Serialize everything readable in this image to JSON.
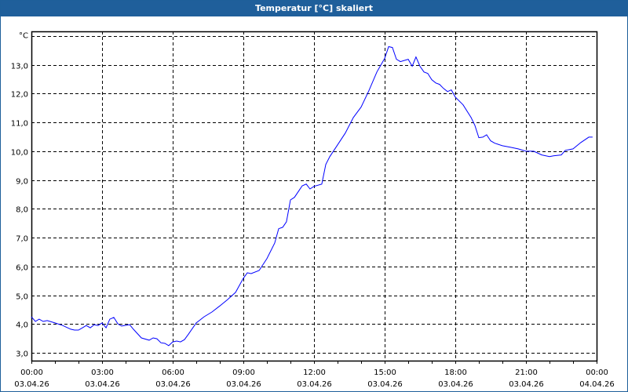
{
  "window": {
    "title": "Temperatur [°C] skaliert"
  },
  "chart_data": {
    "type": "line",
    "title": "Temperatur [°C] skaliert",
    "ylabel": "°C",
    "xlabel": "",
    "xlim": [
      0,
      24
    ],
    "ylim": [
      2.73,
      14.16
    ],
    "grid": true,
    "y_ticks": [
      "3,0",
      "4,0",
      "5,0",
      "6,0",
      "7,0",
      "8,0",
      "9,0",
      "10,0",
      "11,0",
      "12,0",
      "13,0"
    ],
    "x_ticks": [
      {
        "time": "00:00",
        "date": "03.04.26"
      },
      {
        "time": "03:00",
        "date": "03.04.26"
      },
      {
        "time": "06:00",
        "date": "03.04.26"
      },
      {
        "time": "09:00",
        "date": "03.04.26"
      },
      {
        "time": "12:00",
        "date": "03.04.26"
      },
      {
        "time": "15:00",
        "date": "03.04.26"
      },
      {
        "time": "18:00",
        "date": "03.04.26"
      },
      {
        "time": "21:00",
        "date": "03.04.26"
      },
      {
        "time": "00:00",
        "date": "04.04.26"
      }
    ],
    "series": [
      {
        "name": "Temperatur",
        "color": "#0000ff",
        "x": [
          0,
          0.17,
          0.33,
          0.5,
          0.67,
          1,
          1.33,
          1.67,
          1.83,
          2,
          2.17,
          2.33,
          2.5,
          2.67,
          2.83,
          3,
          3.17,
          3.33,
          3.5,
          3.67,
          3.83,
          4.17,
          4.33,
          4.67,
          5,
          5.17,
          5.33,
          5.5,
          5.67,
          5.83,
          6,
          6.17,
          6.33,
          6.5,
          6.67,
          7,
          7.33,
          7.67,
          8,
          8.33,
          8.67,
          9,
          9.17,
          9.33,
          9.67,
          10,
          10.33,
          10.5,
          10.67,
          10.83,
          11,
          11.17,
          11.5,
          11.67,
          11.83,
          12,
          12.33,
          12.5,
          12.67,
          13,
          13.33,
          13.67,
          14,
          14.33,
          14.67,
          15,
          15.17,
          15.33,
          15.5,
          15.67,
          16,
          16.17,
          16.33,
          16.5,
          16.67,
          16.83,
          17,
          17.17,
          17.33,
          17.5,
          17.67,
          17.83,
          18,
          18.33,
          18.67,
          18.83,
          19,
          19.17,
          19.33,
          19.5,
          19.67,
          20,
          20.33,
          20.67,
          21,
          21.33,
          21.67,
          22,
          22.17,
          22.5,
          22.67,
          23,
          23.33,
          23.67,
          23.83
        ],
        "y": [
          4.25,
          4.09,
          4.17,
          4.09,
          4.12,
          4.04,
          3.95,
          3.82,
          3.79,
          3.79,
          3.87,
          3.95,
          3.87,
          3.98,
          3.95,
          4.04,
          3.87,
          4.17,
          4.23,
          4.01,
          3.93,
          3.98,
          3.82,
          3.52,
          3.44,
          3.52,
          3.49,
          3.35,
          3.33,
          3.25,
          3.38,
          3.41,
          3.38,
          3.46,
          3.65,
          4.04,
          4.25,
          4.42,
          4.63,
          4.85,
          5.1,
          5.59,
          5.78,
          5.75,
          5.86,
          6.27,
          6.81,
          7.31,
          7.36,
          7.55,
          8.31,
          8.4,
          8.8,
          8.86,
          8.69,
          8.78,
          8.86,
          9.54,
          9.81,
          10.22,
          10.63,
          11.17,
          11.53,
          12.1,
          12.75,
          13.22,
          13.63,
          13.6,
          13.19,
          13.11,
          13.19,
          12.95,
          13.27,
          12.95,
          12.75,
          12.7,
          12.48,
          12.37,
          12.32,
          12.18,
          12.07,
          12.13,
          11.88,
          11.61,
          11.17,
          10.9,
          10.47,
          10.49,
          10.57,
          10.36,
          10.28,
          10.19,
          10.14,
          10.08,
          10.0,
          10.0,
          9.87,
          9.81,
          9.84,
          9.87,
          10.03,
          10.08,
          10.3,
          10.49,
          10.49
        ]
      }
    ]
  }
}
